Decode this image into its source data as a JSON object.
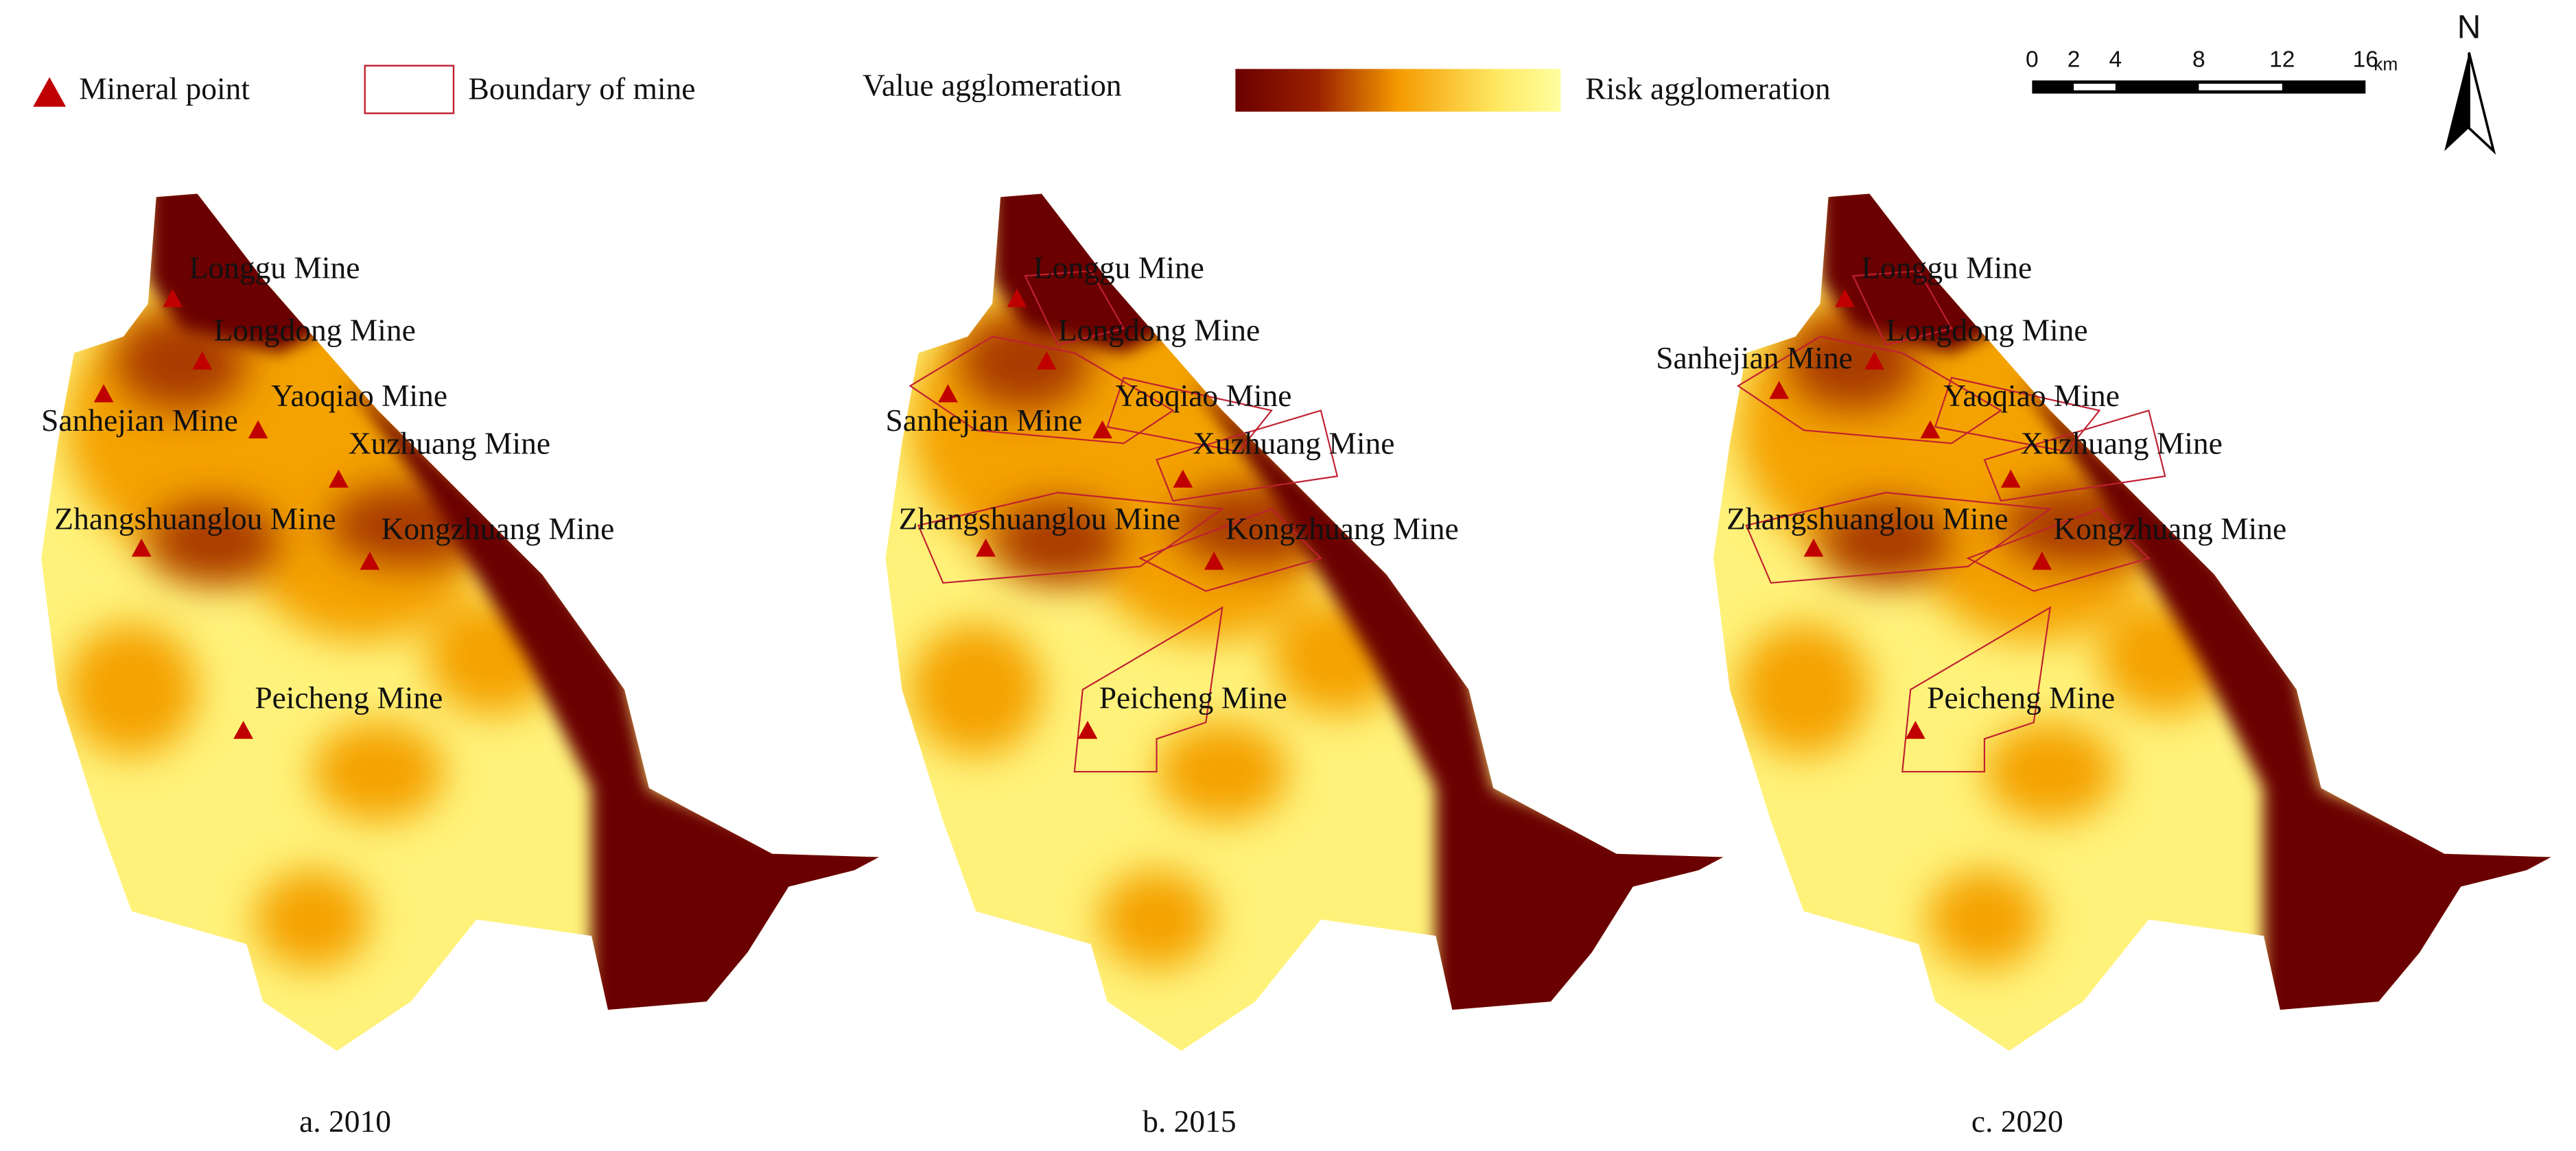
{
  "legend": {
    "mineral_point": "Mineral point",
    "boundary": "Boundary of mine",
    "value": "Value agglomeration",
    "risk": "Risk agglomeration"
  },
  "scale_bar": {
    "ticks": [
      0,
      2,
      4,
      8,
      12,
      16
    ],
    "unit": "km"
  },
  "north": "N",
  "panels": [
    {
      "caption": "a. 2010",
      "mines": [
        "Longgu Mine",
        "Longdong Mine",
        "Yaoqiao Mine",
        "Sanhejian Mine",
        "Xuzhuang Mine",
        "Zhangshuanglou Mine",
        "Kongzhuang Mine",
        "Peicheng Mine"
      ]
    },
    {
      "caption": "b. 2015",
      "mines": [
        "Longgu Mine",
        "Longdong Mine",
        "Yaoqiao Mine",
        "Sanhejian Mine",
        "Xuzhuang Mine",
        "Zhangshuanglou Mine",
        "Kongzhuang Mine",
        "Peicheng Mine"
      ]
    },
    {
      "caption": "c. 2020",
      "mines": [
        "Longgu Mine",
        "Longdong Mine",
        "Yaoqiao Mine",
        "Sanhejian Mine",
        "Xuzhuang Mine",
        "Zhangshuanglou Mine",
        "Kongzhuang Mine",
        "Peicheng Mine"
      ]
    }
  ]
}
